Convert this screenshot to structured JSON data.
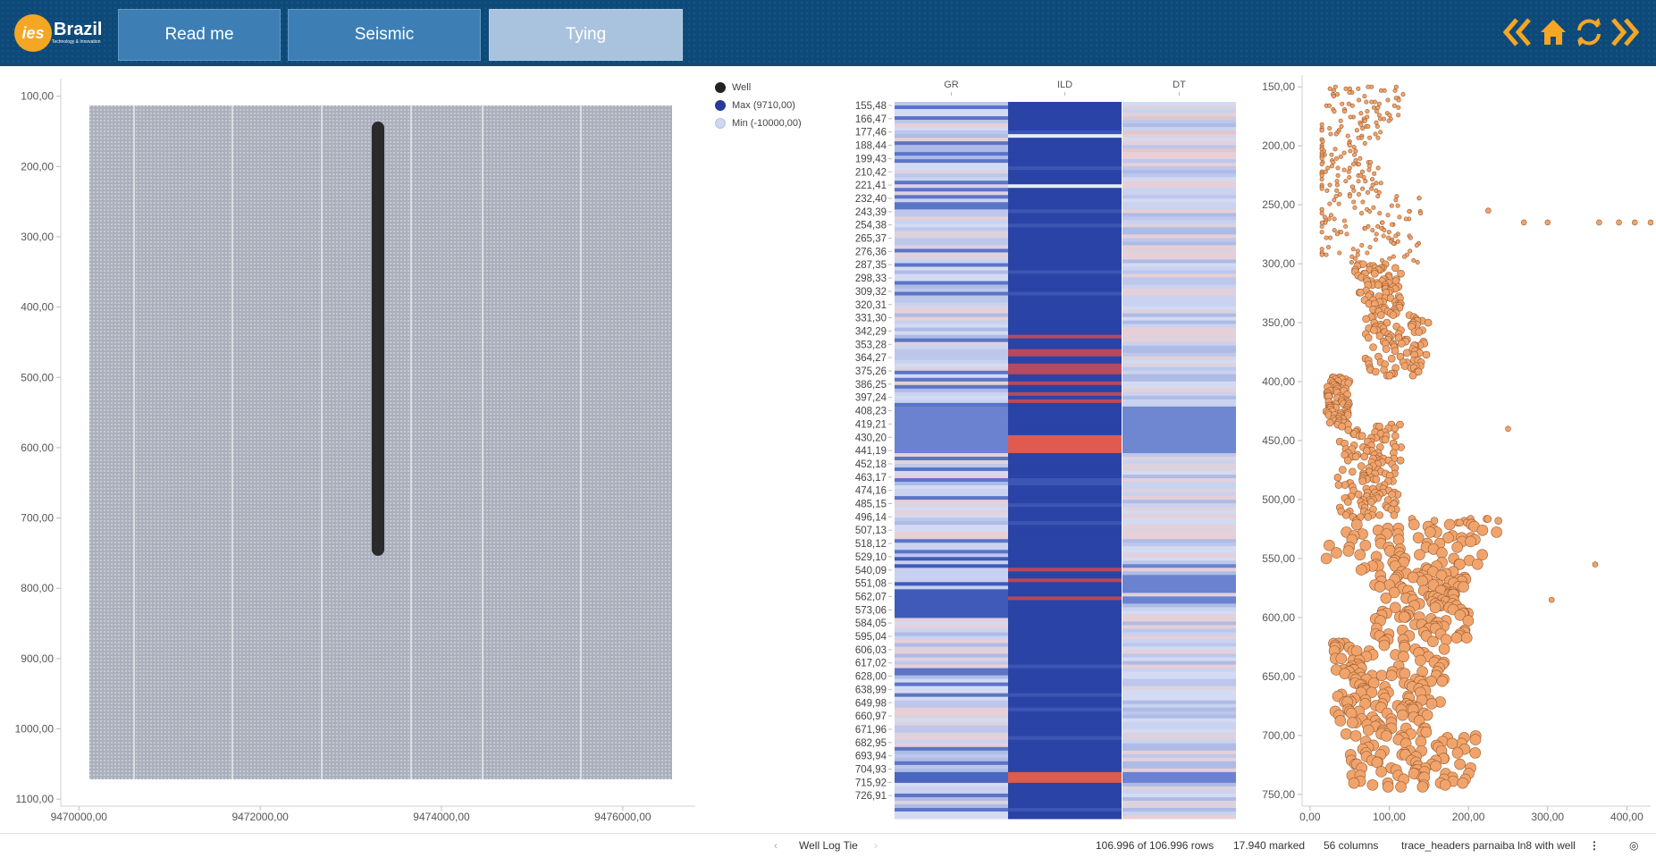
{
  "header": {
    "logo_badge": "ies",
    "logo_brand": "Brazil",
    "logo_tagline": "Technology & Innovation",
    "nav": [
      {
        "label": "Read me"
      },
      {
        "label": "Seismic"
      },
      {
        "label": "Tying",
        "active": true
      }
    ],
    "icons": [
      "double-chevron-left-icon",
      "home-icon",
      "refresh-icon",
      "double-chevron-right-icon"
    ],
    "accent": "#f5a623"
  },
  "legend": {
    "items": [
      {
        "label": "Well",
        "color": "#222222"
      },
      {
        "label": "Max (9710,00)",
        "color": "#243b97"
      },
      {
        "label": "Min (-10000,00)",
        "color": "#cfd7f2"
      }
    ]
  },
  "map_chart": {
    "y_ticks": [
      "100,00",
      "200,00",
      "300,00",
      "400,00",
      "500,00",
      "600,00",
      "700,00",
      "800,00",
      "900,00",
      "1000,00",
      "1100,00"
    ],
    "x_ticks": [
      "9470000,00",
      "9472000,00",
      "9474000,00",
      "9476000,00"
    ]
  },
  "heatmap": {
    "columns": [
      "GR",
      "ILD",
      "DT"
    ],
    "row_labels": [
      "155,48",
      "166,47",
      "177,46",
      "188,44",
      "199,43",
      "210,42",
      "221,41",
      "232,40",
      "243,39",
      "254,38",
      "265,37",
      "276,36",
      "287,35",
      "298,33",
      "309,32",
      "320,31",
      "331,30",
      "342,29",
      "353,28",
      "364,27",
      "375,26",
      "386,25",
      "397,24",
      "408,23",
      "419,21",
      "430,20",
      "441,19",
      "452,18",
      "463,17",
      "474,16",
      "485,15",
      "496,14",
      "507,13",
      "518,12",
      "529,10",
      "540,09",
      "551,08",
      "562,07",
      "573,06",
      "584,05",
      "595,04",
      "606,03",
      "617,02",
      "628,00",
      "638,99",
      "649,98",
      "660,97",
      "671,96",
      "682,95",
      "693,94",
      "704,93",
      "715,92",
      "726,91"
    ]
  },
  "scatter_chart": {
    "y_ticks": [
      "150,00",
      "200,00",
      "250,00",
      "300,00",
      "350,00",
      "400,00",
      "450,00",
      "500,00",
      "550,00",
      "600,00",
      "650,00",
      "700,00",
      "750,00"
    ],
    "x_ticks": [
      "0,00",
      "100,00",
      "200,00",
      "300,00",
      "400,00"
    ],
    "point_color": "#f0a46c"
  },
  "status": {
    "page_name": "Well Log Tie",
    "rows": "106.996 of 106.996 rows",
    "marked": "17.940 marked",
    "columns": "56 columns",
    "table": "trace_headers parnaiba ln8 with well"
  },
  "chart_data": [
    {
      "type": "scatter",
      "xlim": [
        9469800,
        9476800
      ],
      "ylim": [
        75,
        1110
      ],
      "x_tick_values": [
        9470000,
        9472000,
        9474000,
        9476000
      ],
      "y_tick_values": [
        100,
        200,
        300,
        400,
        500,
        600,
        700,
        800,
        900,
        1000,
        1100
      ],
      "series": [
        {
          "name": "Well",
          "x": [
            9473300,
            9473300
          ],
          "y": [
            145,
            745
          ]
        }
      ]
    },
    {
      "type": "heatmap",
      "columns": [
        "GR",
        "ILD",
        "DT"
      ],
      "range": [
        -10000,
        9710
      ]
    },
    {
      "type": "scatter",
      "xlim": [
        -10,
        430
      ],
      "ylim": [
        140,
        760
      ],
      "x_tick_values": [
        0,
        100,
        200,
        300,
        400
      ],
      "y_tick_values": [
        150,
        200,
        250,
        300,
        350,
        400,
        450,
        500,
        550,
        600,
        650,
        700,
        750
      ]
    }
  ]
}
